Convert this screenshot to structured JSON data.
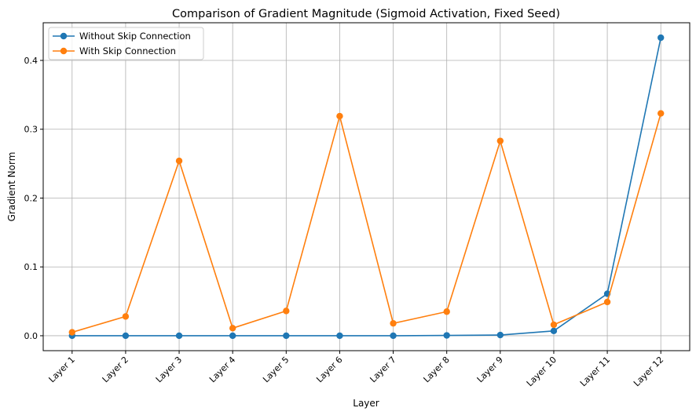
{
  "chart_data": {
    "type": "line",
    "title": "Comparison of Gradient Magnitude (Sigmoid Activation, Fixed Seed)",
    "xlabel": "Layer",
    "ylabel": "Gradient Norm",
    "categories": [
      "Layer 1",
      "Layer 2",
      "Layer 3",
      "Layer 4",
      "Layer 5",
      "Layer 6",
      "Layer 7",
      "Layer 8",
      "Layer 9",
      "Layer 10",
      "Layer 11",
      "Layer 12"
    ],
    "ylim": [
      -0.0217,
      0.4547
    ],
    "yticks": [
      0.0,
      0.1,
      0.2,
      0.3,
      0.4
    ],
    "ytick_labels": [
      "0.0",
      "0.1",
      "0.2",
      "0.3",
      "0.4"
    ],
    "grid": true,
    "legend_position": "top-left",
    "series": [
      {
        "name": "Without Skip Connection",
        "color": "#1f77b4",
        "values": [
          0.0,
          0.0,
          0.0,
          0.0,
          0.0,
          0.0,
          0.0,
          0.0005,
          0.001,
          0.007,
          0.061,
          0.433
        ]
      },
      {
        "name": "With Skip Connection",
        "color": "#ff7f0e",
        "values": [
          0.005,
          0.028,
          0.254,
          0.011,
          0.036,
          0.319,
          0.018,
          0.035,
          0.283,
          0.016,
          0.049,
          0.323
        ]
      }
    ]
  }
}
